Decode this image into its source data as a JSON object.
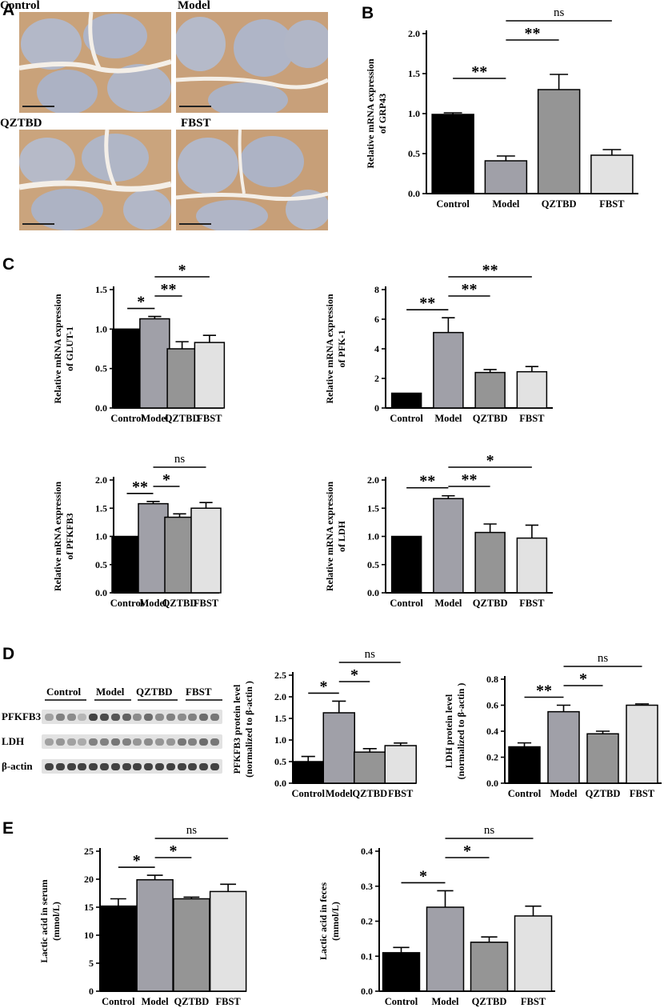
{
  "panel_letters": {
    "a": "A",
    "b": "B",
    "c": "C",
    "d": "D",
    "e": "E"
  },
  "micrographs": [
    {
      "label": "Control"
    },
    {
      "label": "Model"
    },
    {
      "label": "QZTBD"
    },
    {
      "label": "FBST"
    }
  ],
  "western_blot": {
    "lanes": [
      "Control",
      "Model",
      "QZTBD",
      "FBST"
    ],
    "blots": [
      {
        "label": "PFKFB3",
        "intensity": [
          0.45,
          0.6,
          0.55,
          0.35,
          0.9,
          0.85,
          0.8,
          0.75,
          0.55,
          0.7,
          0.55,
          0.6,
          0.55,
          0.6,
          0.7,
          0.65
        ]
      },
      {
        "label": "LDH",
        "intensity": [
          0.45,
          0.5,
          0.45,
          0.4,
          0.6,
          0.6,
          0.65,
          0.6,
          0.5,
          0.55,
          0.5,
          0.5,
          0.65,
          0.6,
          0.7,
          0.65
        ]
      },
      {
        "label": "β-actin",
        "intensity": [
          0.9,
          0.9,
          0.9,
          0.9,
          0.9,
          0.9,
          0.9,
          0.9,
          0.9,
          0.9,
          0.9,
          0.9,
          0.9,
          0.9,
          0.9,
          0.9
        ]
      }
    ]
  },
  "colors": {
    "Control": "#000000",
    "Model": "#a0a0a8",
    "QZTBD": "#959595",
    "FBST": "#e2e2e2"
  },
  "chart_data": [
    {
      "id": "grp43",
      "type": "bar",
      "categories": [
        "Control",
        "Model",
        "QZTBD",
        "FBST"
      ],
      "values": [
        0.99,
        0.41,
        1.3,
        0.48
      ],
      "errors": [
        0.02,
        0.06,
        0.19,
        0.07
      ],
      "ylabel": "Relative mRNA expression\nof GRP43",
      "ylim": [
        0,
        2.0
      ],
      "yticks": [
        "0.0",
        "0.5",
        "1.0",
        "1.5",
        "2.0"
      ],
      "sig": [
        {
          "from": 0,
          "to": 1,
          "text": "**",
          "level": 1
        },
        {
          "from": 1,
          "to": 2,
          "text": "**",
          "level": 2
        },
        {
          "from": 1,
          "to": 3,
          "text": "ns",
          "level": 3
        }
      ]
    },
    {
      "id": "glut1",
      "type": "bar",
      "categories": [
        "Control",
        "Model",
        "QZTBD",
        "FBST"
      ],
      "values": [
        1.0,
        1.13,
        0.75,
        0.83
      ],
      "errors": [
        0.0,
        0.03,
        0.09,
        0.09
      ],
      "ylabel": "Relative mRNA expression\nof GLUT-1",
      "ylim": [
        0,
        1.5
      ],
      "yticks": [
        "0.0",
        "0.5",
        "1.0",
        "1.5"
      ],
      "sig": [
        {
          "from": 0,
          "to": 1,
          "text": "*",
          "level": 1
        },
        {
          "from": 1,
          "to": 2,
          "text": "**",
          "level": 2
        },
        {
          "from": 1,
          "to": 3,
          "text": "*",
          "level": 3
        }
      ]
    },
    {
      "id": "pfk1",
      "type": "bar",
      "categories": [
        "Control",
        "Model",
        "QZTBD",
        "FBST"
      ],
      "values": [
        1.0,
        5.1,
        2.4,
        2.45
      ],
      "errors": [
        0.0,
        1.0,
        0.2,
        0.35
      ],
      "ylabel": "Relative mRNA expression\nof PFK-1",
      "ylim": [
        0,
        8
      ],
      "yticks": [
        "0",
        "2",
        "4",
        "6",
        "8"
      ],
      "sig": [
        {
          "from": 0,
          "to": 1,
          "text": "**",
          "level": 1
        },
        {
          "from": 1,
          "to": 2,
          "text": "**",
          "level": 2
        },
        {
          "from": 1,
          "to": 3,
          "text": "**",
          "level": 3
        }
      ]
    },
    {
      "id": "pfkfb3",
      "type": "bar",
      "categories": [
        "Control",
        "Model",
        "QZTBD",
        "FBST"
      ],
      "values": [
        1.0,
        1.58,
        1.34,
        1.5
      ],
      "errors": [
        0.0,
        0.04,
        0.06,
        0.1
      ],
      "ylabel": "Relative mRNA expression\nof PFKFB3",
      "ylim": [
        0,
        2.0
      ],
      "yticks": [
        "0.0",
        "0.5",
        "1.0",
        "1.5",
        "2.0"
      ],
      "sig": [
        {
          "from": 0,
          "to": 1,
          "text": "**",
          "level": 1
        },
        {
          "from": 1,
          "to": 2,
          "text": "*",
          "level": 2
        },
        {
          "from": 1,
          "to": 3,
          "text": "ns",
          "level": 3
        }
      ]
    },
    {
      "id": "ldh",
      "type": "bar",
      "categories": [
        "Control",
        "Model",
        "QZTBD",
        "FBST"
      ],
      "values": [
        1.0,
        1.67,
        1.07,
        0.97
      ],
      "errors": [
        0.0,
        0.05,
        0.15,
        0.23
      ],
      "ylabel": "Relative mRNA expression\nof LDH",
      "ylim": [
        0,
        2.0
      ],
      "yticks": [
        "0.0",
        "0.5",
        "1.0",
        "1.5",
        "2.0"
      ],
      "sig": [
        {
          "from": 0,
          "to": 1,
          "text": "**",
          "level": 1
        },
        {
          "from": 1,
          "to": 2,
          "text": "**",
          "level": 2
        },
        {
          "from": 1,
          "to": 3,
          "text": "*",
          "level": 3
        }
      ]
    },
    {
      "id": "pfkfb3_protein",
      "type": "bar",
      "categories": [
        "Control",
        "Model",
        "QZTBD",
        "FBST"
      ],
      "values": [
        0.5,
        1.63,
        0.72,
        0.87
      ],
      "errors": [
        0.12,
        0.27,
        0.08,
        0.06
      ],
      "ylabel": "PFKFB3 protein level\n(normalized to β-actin )",
      "ylim": [
        0,
        2.5
      ],
      "yticks": [
        "0.0",
        "0.5",
        "1.0",
        "1.5",
        "2.0",
        "2.5"
      ],
      "sig": [
        {
          "from": 0,
          "to": 1,
          "text": "*",
          "level": 1
        },
        {
          "from": 1,
          "to": 2,
          "text": "*",
          "level": 2
        },
        {
          "from": 1,
          "to": 3,
          "text": "ns",
          "level": 3
        }
      ]
    },
    {
      "id": "ldh_protein",
      "type": "bar",
      "categories": [
        "Control",
        "Model",
        "QZTBD",
        "FBST"
      ],
      "values": [
        0.28,
        0.55,
        0.38,
        0.6
      ],
      "errors": [
        0.03,
        0.05,
        0.02,
        0.01
      ],
      "ylabel": "LDH  protein level\n(normalized to β-actin )",
      "ylim": [
        0,
        0.8
      ],
      "yticks": [
        "0.0",
        "0.2",
        "0.4",
        "0.6",
        "0.8"
      ],
      "sig": [
        {
          "from": 0,
          "to": 1,
          "text": "**",
          "level": 1
        },
        {
          "from": 1,
          "to": 2,
          "text": "*",
          "level": 2
        },
        {
          "from": 1,
          "to": 3,
          "text": "ns",
          "level": 3
        }
      ]
    },
    {
      "id": "lactic_serum",
      "type": "bar",
      "categories": [
        "Control",
        "Model",
        "QZTBD",
        "FBST"
      ],
      "values": [
        15.2,
        19.9,
        16.5,
        17.8
      ],
      "errors": [
        1.3,
        0.8,
        0.3,
        1.3
      ],
      "ylabel": "Lactic acid in serum\n(mmol/L)",
      "ylim": [
        0,
        25
      ],
      "yticks": [
        "0",
        "5",
        "10",
        "15",
        "20",
        "25"
      ],
      "sig": [
        {
          "from": 0,
          "to": 1,
          "text": "*",
          "level": 1
        },
        {
          "from": 1,
          "to": 2,
          "text": "*",
          "level": 2
        },
        {
          "from": 1,
          "to": 3,
          "text": "ns",
          "level": 3
        }
      ]
    },
    {
      "id": "lactic_feces",
      "type": "bar",
      "categories": [
        "Control",
        "Model",
        "QZTBD",
        "FBST"
      ],
      "values": [
        0.11,
        0.24,
        0.14,
        0.215
      ],
      "errors": [
        0.015,
        0.047,
        0.015,
        0.028
      ],
      "ylabel": "Lactic acid in feces\n(mmol/L)",
      "ylim": [
        0,
        0.4
      ],
      "yticks": [
        "0.0",
        "0.1",
        "0.2",
        "0.3",
        "0.4"
      ],
      "sig": [
        {
          "from": 0,
          "to": 1,
          "text": "*",
          "level": 1
        },
        {
          "from": 1,
          "to": 2,
          "text": "*",
          "level": 2
        },
        {
          "from": 1,
          "to": 3,
          "text": "ns",
          "level": 3
        }
      ]
    }
  ]
}
